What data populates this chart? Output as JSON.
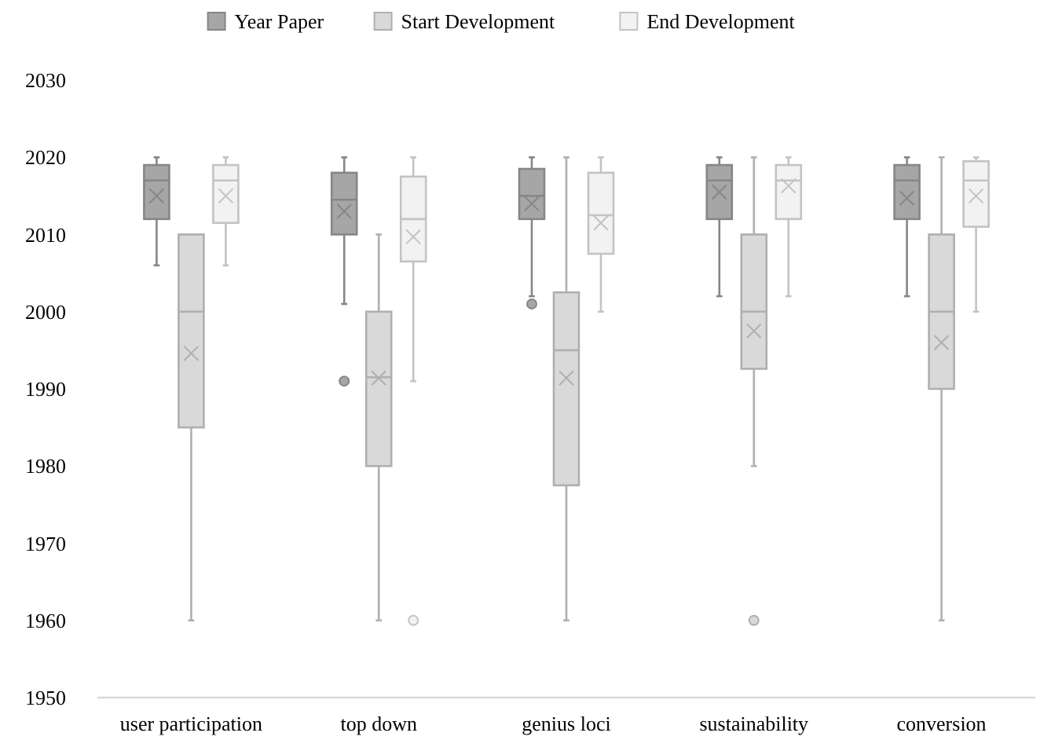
{
  "chart_data": {
    "type": "box",
    "categories": [
      "user participation",
      "top down",
      "genius loci",
      "sustainability",
      "conversion"
    ],
    "ylim": [
      1950,
      2030
    ],
    "yticks": [
      1950,
      1960,
      1970,
      1980,
      1990,
      2000,
      2010,
      2020,
      2030
    ],
    "grid": false,
    "legend": "top",
    "marker": "cross",
    "series": [
      {
        "name": "Year Paper",
        "color": "#a6a6a6",
        "boxes": [
          {
            "low": 2006,
            "q1": 2012,
            "median": 2017,
            "q3": 2019,
            "high": 2020,
            "mean": 2015
          },
          {
            "low": 2001,
            "q1": 2010,
            "median": 2014.5,
            "q3": 2018,
            "high": 2020,
            "mean": 2013,
            "outliers": [
              1991
            ]
          },
          {
            "low": 2002,
            "q1": 2012,
            "median": 2015,
            "q3": 2018.5,
            "high": 2020,
            "mean": 2014,
            "outliers": [
              2001
            ]
          },
          {
            "low": 2002,
            "q1": 2012,
            "median": 2017,
            "q3": 2019,
            "high": 2020,
            "mean": 2015.5
          },
          {
            "low": 2002,
            "q1": 2012,
            "median": 2017,
            "q3": 2019,
            "high": 2020,
            "mean": 2014.7
          }
        ]
      },
      {
        "name": "Start Development",
        "color": "#d9d9d9",
        "boxes": [
          {
            "low": 1960,
            "q1": 1985,
            "median": 2000,
            "q3": 2010,
            "high": 2010,
            "mean": 1994.6
          },
          {
            "low": 1960,
            "q1": 1980,
            "median": 1991.5,
            "q3": 2000,
            "high": 2010,
            "mean": 1991.4
          },
          {
            "low": 1960,
            "q1": 1977.5,
            "median": 1995,
            "q3": 2002.5,
            "high": 2020,
            "mean": 1991.4
          },
          {
            "low": 1980,
            "q1": 1992.6,
            "median": 2000,
            "q3": 2010,
            "high": 2020,
            "mean": 1997.5,
            "outliers": [
              1960
            ]
          },
          {
            "low": 1960,
            "q1": 1990,
            "median": 2000,
            "q3": 2010,
            "high": 2020,
            "mean": 1996
          }
        ]
      },
      {
        "name": "End Development",
        "color": "#f2f2f2",
        "boxes": [
          {
            "low": 2006,
            "q1": 2011.5,
            "median": 2017,
            "q3": 2019,
            "high": 2020,
            "mean": 2015
          },
          {
            "low": 1991,
            "q1": 2006.5,
            "median": 2012,
            "q3": 2017.5,
            "high": 2020,
            "mean": 2009.7,
            "outliers": [
              1960
            ]
          },
          {
            "low": 2000,
            "q1": 2007.5,
            "median": 2012.5,
            "q3": 2018,
            "high": 2020,
            "mean": 2011.5
          },
          {
            "low": 2002,
            "q1": 2012,
            "median": 2017,
            "q3": 2019,
            "high": 2020,
            "mean": 2016.3
          },
          {
            "low": 2000,
            "q1": 2011,
            "median": 2017,
            "q3": 2019.5,
            "high": 2020,
            "mean": 2015
          }
        ]
      }
    ]
  }
}
